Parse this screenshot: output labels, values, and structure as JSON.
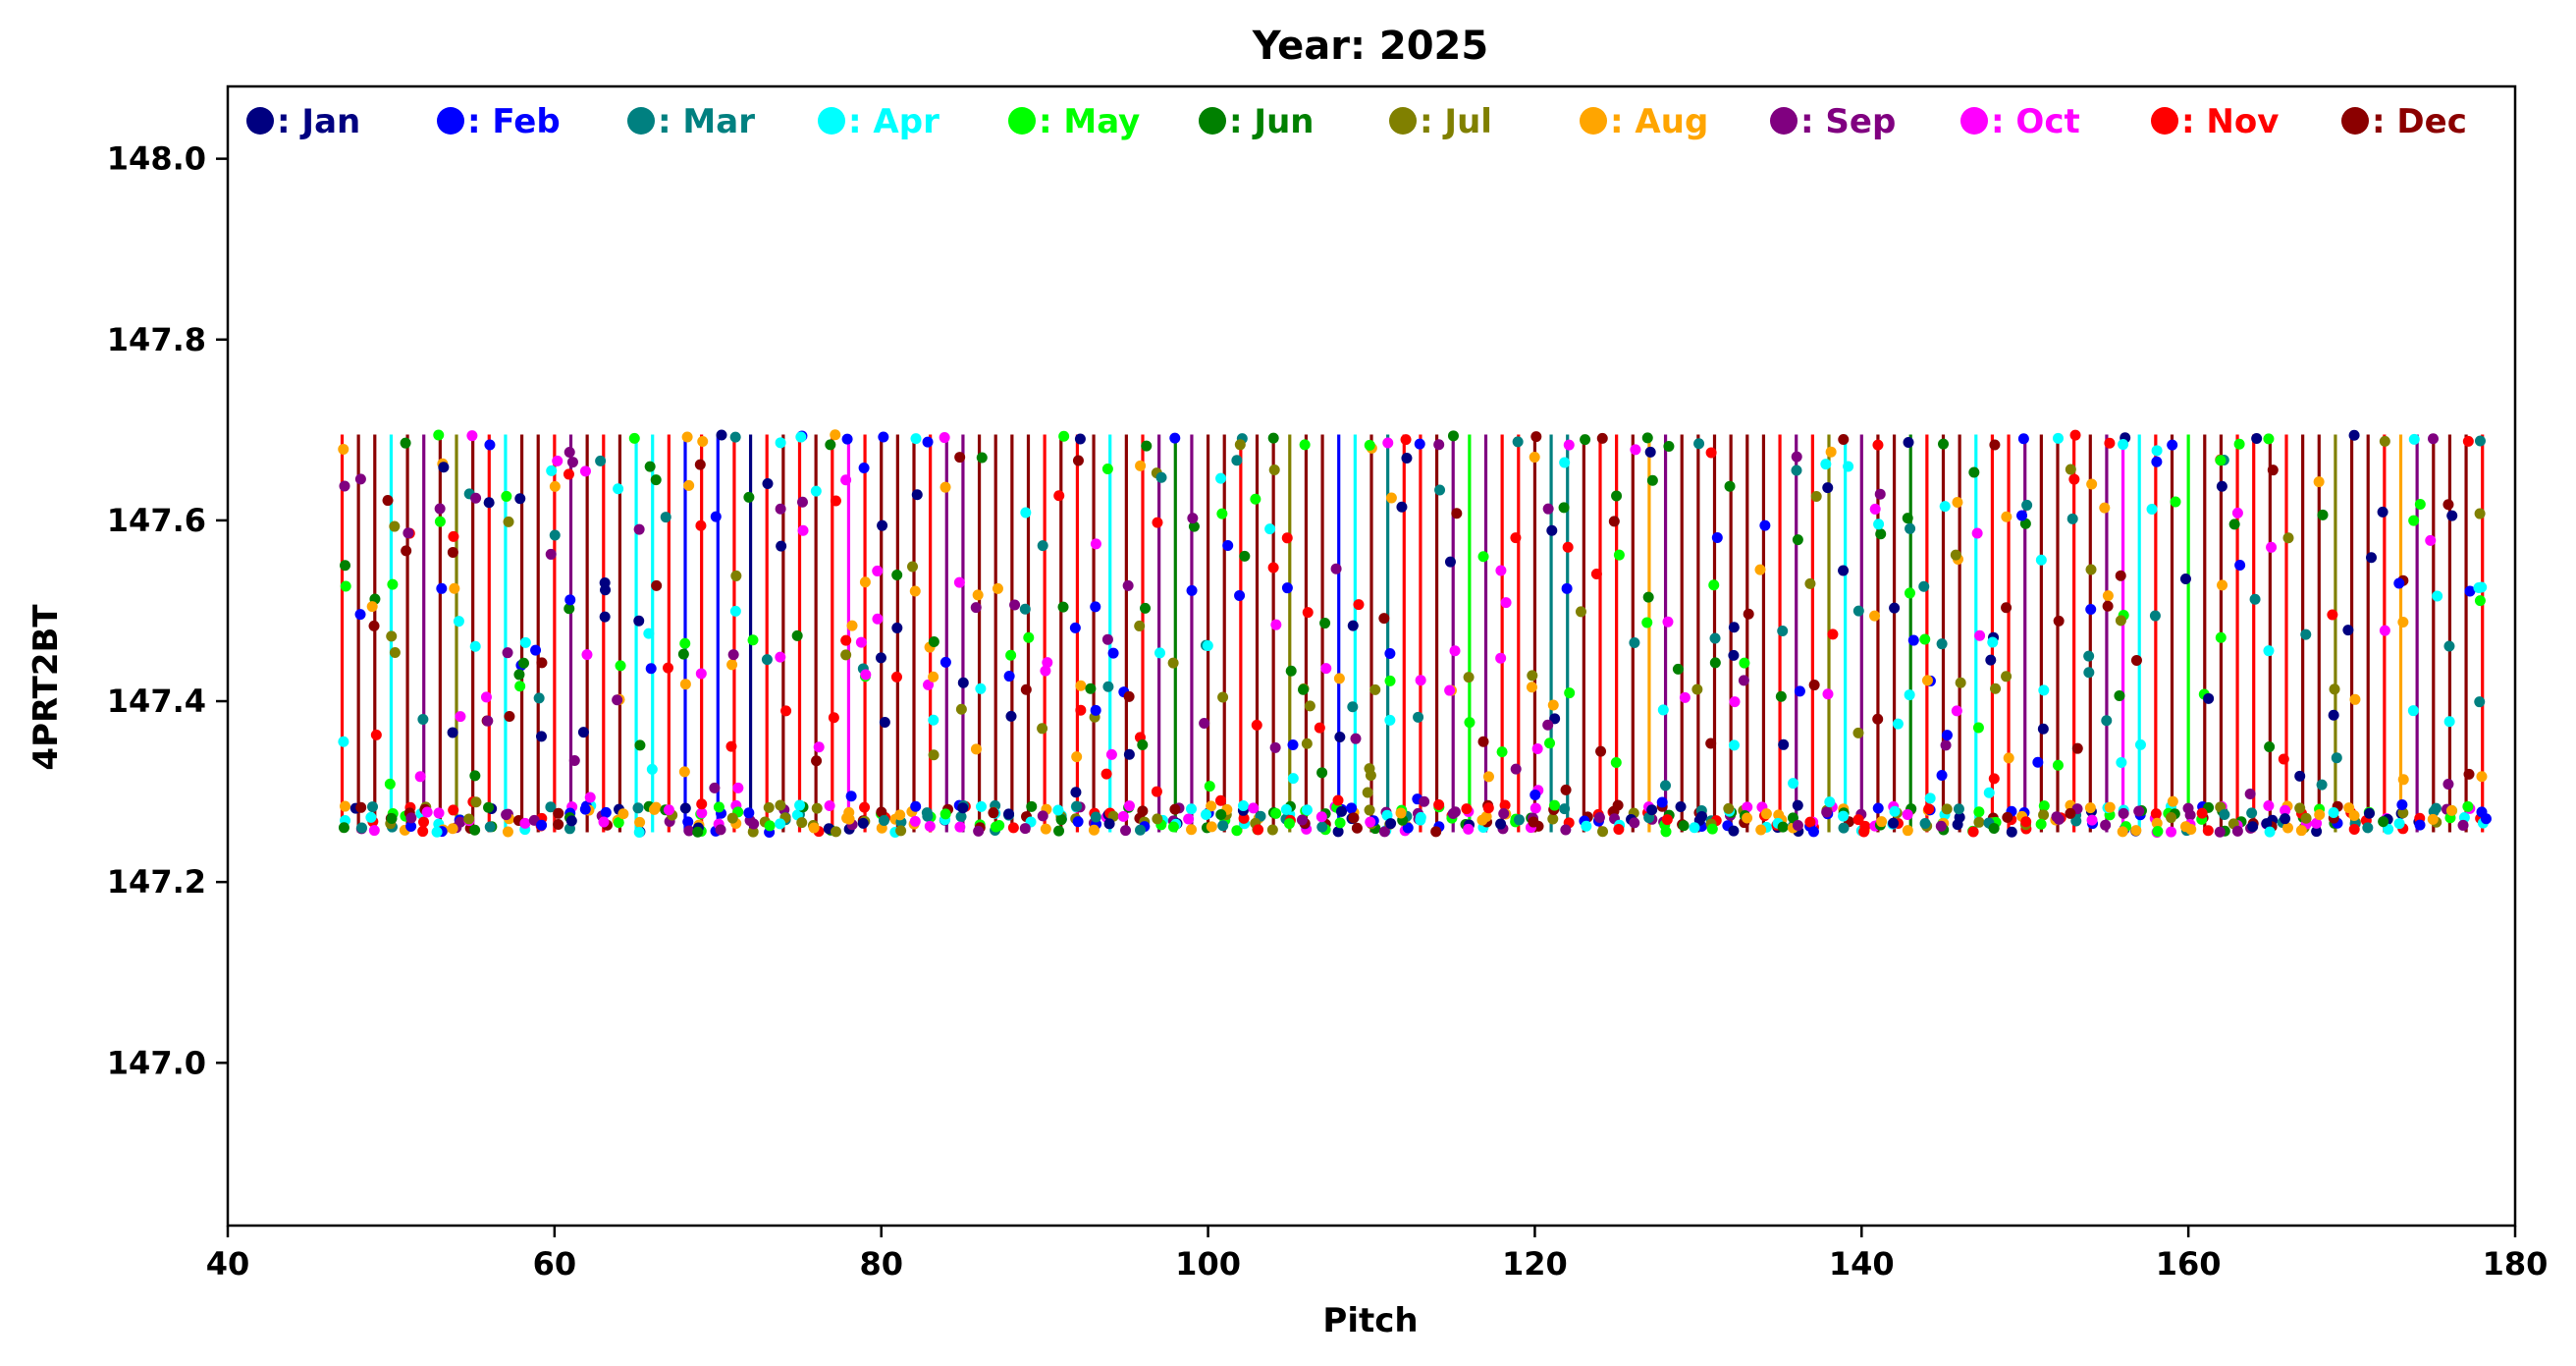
{
  "chart_data": {
    "type": "scatter",
    "title": "Year: 2025",
    "xlabel": "Pitch",
    "ylabel": "4PRT2BT",
    "xlim": [
      40,
      180
    ],
    "ylim": [
      146.82,
      148.08
    ],
    "xticks": [
      "40",
      "60",
      "80",
      "100",
      "120",
      "140",
      "160",
      "180"
    ],
    "yticks": [
      "147.0",
      "147.2",
      "147.4",
      "147.6",
      "147.8",
      "148.0"
    ],
    "grid": false,
    "legend_placement": "top",
    "pitch_range": [
      47,
      178
    ],
    "value_range": [
      147.255,
      147.695
    ],
    "series": [
      {
        "name": ": Jan",
        "color": "#000080"
      },
      {
        "name": ": Feb",
        "color": "#0000ff"
      },
      {
        "name": ": Mar",
        "color": "#008080"
      },
      {
        "name": ": Apr",
        "color": "#00ffff"
      },
      {
        "name": ": May",
        "color": "#00ff00"
      },
      {
        "name": ": Jun",
        "color": "#008000"
      },
      {
        "name": ": Jul",
        "color": "#808000"
      },
      {
        "name": ": Aug",
        "color": "#ffa500"
      },
      {
        "name": ": Sep",
        "color": "#800080"
      },
      {
        "name": ": Oct",
        "color": "#ff00ff"
      },
      {
        "name": ": Nov",
        "color": "#ff0000"
      },
      {
        "name": ": Dec",
        "color": "#8b0000"
      }
    ]
  }
}
